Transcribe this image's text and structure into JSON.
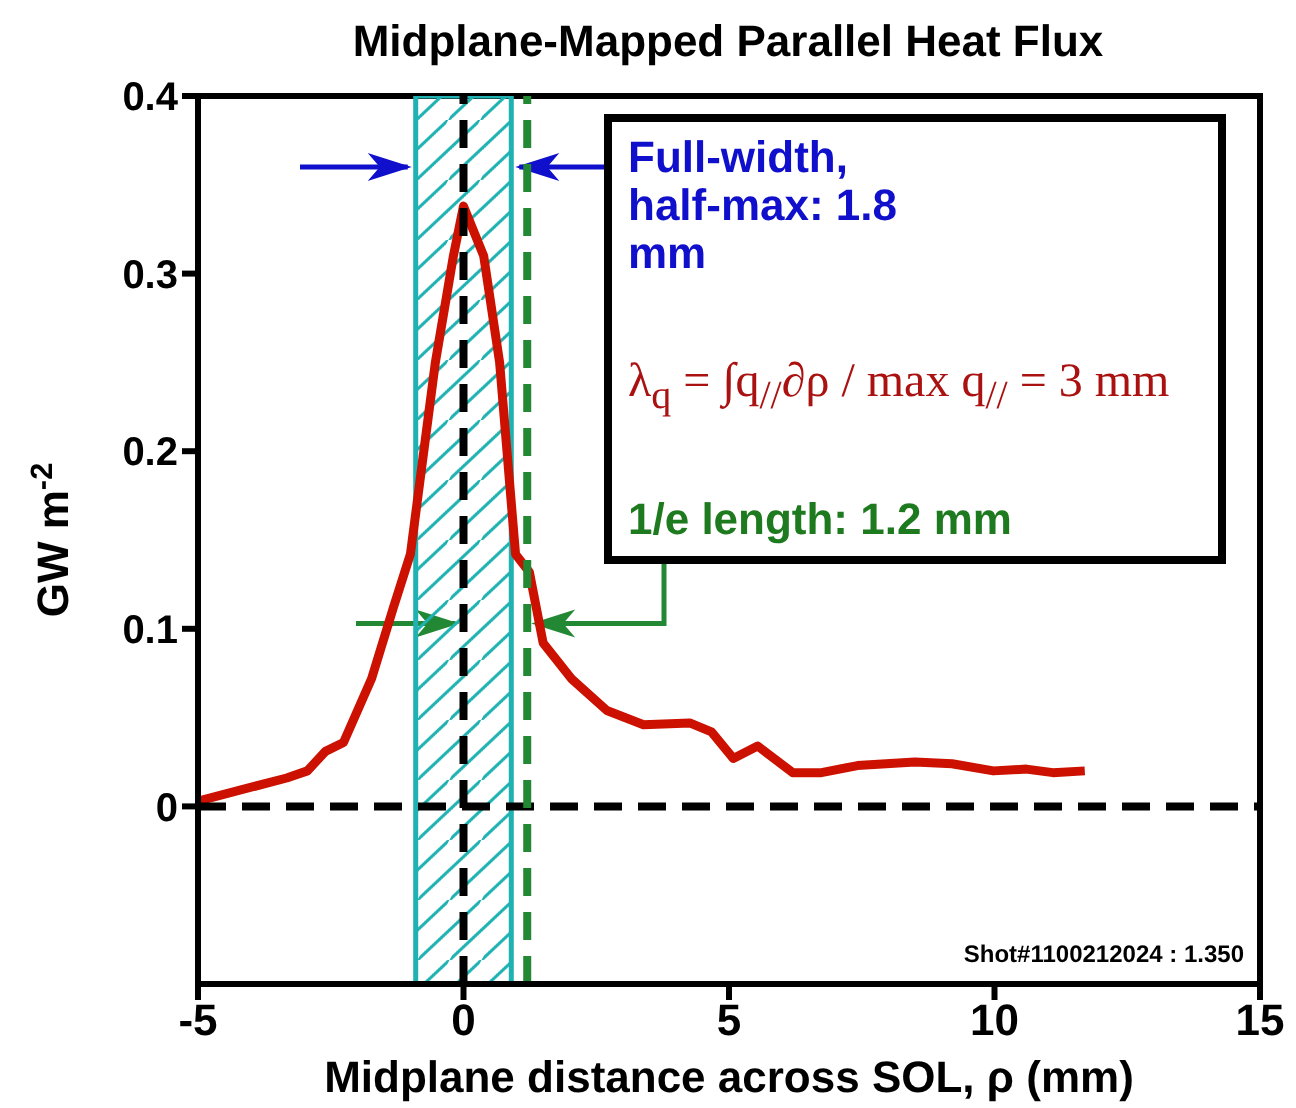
{
  "chart_data": {
    "type": "line",
    "title": "Midplane-Mapped Parallel Heat Flux",
    "xlabel": "Midplane distance across SOL, ρ (mm)",
    "ylabel": "GW m$^{-2}$",
    "x": [
      -5,
      -3.33,
      -2.94,
      -2.6,
      -2.26,
      -1.73,
      -1.32,
      -1.0,
      -0.53,
      -0.19,
      0,
      0.38,
      0.68,
      0.98,
      1.24,
      1.5,
      2.03,
      2.7,
      3.39,
      4.26,
      4.67,
      5.08,
      5.54,
      6.2,
      6.74,
      7.42,
      8.5,
      9.2,
      9.98,
      10.6,
      11.1,
      11.7
    ],
    "series": [
      {
        "color": "#cc1100",
        "values": [
          0.003,
          0.016,
          0.02,
          0.031,
          0.036,
          0.072,
          0.112,
          0.142,
          0.25,
          0.31,
          0.338,
          0.31,
          0.25,
          0.142,
          0.132,
          0.092,
          0.072,
          0.054,
          0.046,
          0.047,
          0.042,
          0.027,
          0.034,
          0.019,
          0.019,
          0.023,
          0.025,
          0.024,
          0.02,
          0.021,
          0.019,
          0.02
        ]
      }
    ],
    "xlim": [
      -5,
      15
    ],
    "xticks": [
      -5,
      0,
      5,
      10,
      15
    ],
    "ylim": [
      -0.1,
      0.4
    ],
    "yticks": [
      0,
      0.1,
      0.2,
      0.3,
      0.4
    ],
    "ref_lines": [
      {
        "axis": "x",
        "value": 0,
        "color": "#000000",
        "line_style": "dashed"
      },
      {
        "axis": "y",
        "value": 0,
        "color": "#000000",
        "line_style": "dashed"
      },
      {
        "axis": "x",
        "value": 1.2,
        "color": "#228833",
        "line_style": "dashed"
      }
    ],
    "bands": [
      {
        "axis": "x",
        "from": -0.9,
        "to": 0.9,
        "color": "#20b2b2"
      }
    ],
    "annotations": [
      {
        "text": "Full-width, half-max: 1.8 mm",
        "x": 0.9,
        "y": 0.36
      },
      "λ$_{q}$ = ∫q$_{//}$∂ρ / max q$_{//}$ = 3 mm",
      {
        "text": "1/e length: 1.2 mm",
        "x": 1.2,
        "y": 0.103
      },
      "Shot#1100212024 : 1.350"
    ],
    "marker": "none",
    "line_style": "solid"
  }
}
